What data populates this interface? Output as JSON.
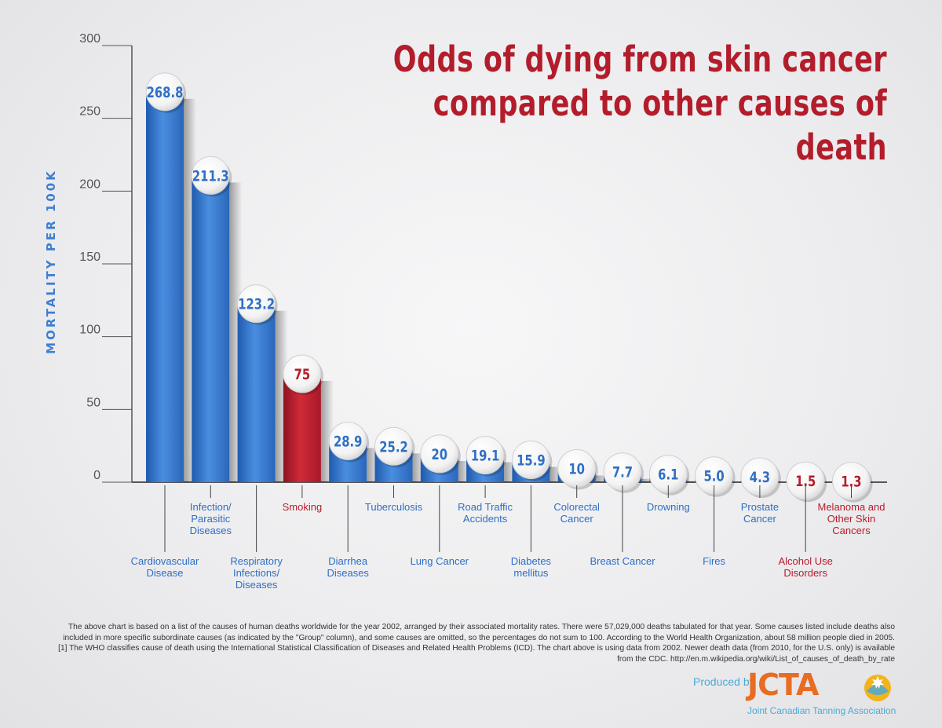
{
  "chart_data": {
    "type": "bar",
    "title": "Odds of dying from skin cancer compared to other causes of death",
    "ylabel": "MORTALITY PER 100K",
    "ylim": [
      0,
      300
    ],
    "yticks": [
      "0",
      "50",
      "100",
      "150",
      "200",
      "250",
      "300"
    ],
    "grid": false,
    "categories": [
      {
        "label": "Cardiovascular Disease",
        "value_label": "268.8",
        "highlight": false
      },
      {
        "label": "Infection/ Parasitic Diseases",
        "value_label": "211.3",
        "highlight": false
      },
      {
        "label": "Respiratory Infections/ Diseases",
        "value_label": "123.2",
        "highlight": false
      },
      {
        "label": "Smoking",
        "value_label": "75",
        "highlight": true
      },
      {
        "label": "Diarrhea Diseases",
        "value_label": "28.9",
        "highlight": false
      },
      {
        "label": "Tuberculosis",
        "value_label": "25.2",
        "highlight": false
      },
      {
        "label": "Lung Cancer",
        "value_label": "20",
        "highlight": false
      },
      {
        "label": "Road Traffic Accidents",
        "value_label": "19.1",
        "highlight": false
      },
      {
        "label": "Diabetes mellitus",
        "value_label": "15.9",
        "highlight": false
      },
      {
        "label": "Colorectal Cancer",
        "value_label": "10",
        "highlight": false
      },
      {
        "label": "Breast Cancer",
        "value_label": "7.7",
        "highlight": false
      },
      {
        "label": "Drowning",
        "value_label": "6.1",
        "highlight": false
      },
      {
        "label": "Fires",
        "value_label": "5.0",
        "highlight": false
      },
      {
        "label": "Prostate Cancer",
        "value_label": "4.3",
        "highlight": false
      },
      {
        "label": "Alcohol Use Disorders",
        "value_label": "1.5",
        "highlight": true
      },
      {
        "label": "Melanoma and Other Skin Cancers",
        "value_label": "1.3",
        "highlight": true
      }
    ],
    "values": [
      268.8,
      211.3,
      123.2,
      75,
      28.9,
      25.2,
      20,
      19.1,
      15.9,
      10,
      7.7,
      6.1,
      5.0,
      4.3,
      1.5,
      1.3
    ],
    "colors": {
      "bar": "#2f6fc4",
      "highlight": "#b71c2a",
      "label_blue": "#2e6ec4",
      "label_red": "#b71c2a",
      "axis": "#555555"
    }
  },
  "footnote": "The above chart is based on a list of the causes of human deaths worldwide for the year 2002, arranged by their associated mortality rates. There were 57,029,000 deaths tabulated for that year. Some causes listed include deaths also included in more specific subordinate causes (as indicated by the \"Group\" column), and some causes are omitted, so the percentages do not sum to 100. According to the World Health Organization, about 58 million people died in 2005.[1] The WHO classifies cause of death using the International Statistical Classification of Diseases and Related Health Problems (ICD). The chart above is using data from 2002. Newer death data (from 2010, for the U.S. only) is available from the CDC. http://en.m.wikipedia.org/wiki/List_of_causes_of_death_by_rate",
  "produced_by": "Produced by",
  "logo_text": "JCTA",
  "org_name": "Joint Canadian Tanning Association"
}
